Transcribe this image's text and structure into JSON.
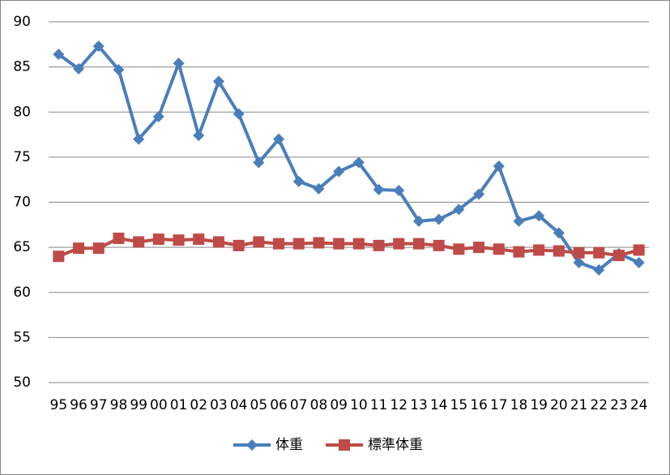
{
  "chart_data": {
    "type": "line",
    "categories": [
      "95",
      "96",
      "97",
      "98",
      "99",
      "00",
      "01",
      "02",
      "03",
      "04",
      "05",
      "06",
      "07",
      "08",
      "09",
      "10",
      "11",
      "12",
      "13",
      "14",
      "15",
      "16",
      "17",
      "18",
      "19",
      "20",
      "21",
      "22",
      "23",
      "24"
    ],
    "series": [
      {
        "name": "体重",
        "color": "#4a7ebb",
        "marker": "diamond",
        "values": [
          86.4,
          84.8,
          87.3,
          84.7,
          77.0,
          79.5,
          85.4,
          77.4,
          83.4,
          79.8,
          74.4,
          77.0,
          72.3,
          71.5,
          73.4,
          74.4,
          71.4,
          71.3,
          67.9,
          68.1,
          69.2,
          70.9,
          74.0,
          67.9,
          68.5,
          66.6,
          63.3,
          62.5,
          64.3,
          63.3
        ]
      },
      {
        "name": "標準体重",
        "color": "#be4b48",
        "marker": "square",
        "values": [
          64.0,
          64.9,
          64.9,
          66.0,
          65.6,
          65.9,
          65.8,
          65.9,
          65.6,
          65.2,
          65.6,
          65.4,
          65.4,
          65.5,
          65.4,
          65.4,
          65.2,
          65.4,
          65.4,
          65.2,
          64.8,
          65.0,
          64.8,
          64.5,
          64.7,
          64.6,
          64.4,
          64.4,
          64.1,
          64.7
        ]
      }
    ],
    "ylim": [
      50,
      90
    ],
    "yticks": [
      50,
      55,
      60,
      65,
      70,
      75,
      80,
      85,
      90
    ],
    "grid": true,
    "legend": "bottom"
  }
}
